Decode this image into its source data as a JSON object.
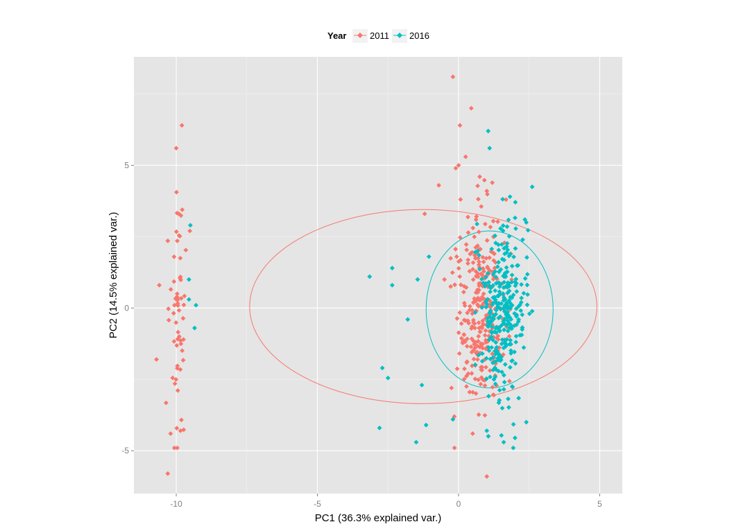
{
  "chart_data": {
    "type": "scatter",
    "title": "",
    "xlabel": "PC1 (36.3% explained var.)",
    "ylabel": "PC2 (14.5% explained var.)",
    "xlim": [
      -11.5,
      5.8
    ],
    "ylim": [
      -6.5,
      8.8
    ],
    "x_ticks": [
      -10,
      -5,
      0,
      5
    ],
    "y_ticks": [
      -5,
      0,
      5
    ],
    "x_tick_labels": [
      "-10",
      "-5",
      "0",
      "5"
    ],
    "y_tick_labels": [
      "-5",
      "0",
      "5"
    ],
    "grid": true,
    "background": "#e5e5e5",
    "legend": {
      "title": "Year",
      "position": "top"
    },
    "series": [
      {
        "name": "2011",
        "color": "#f8766d",
        "ellipse": {
          "cx": -1.25,
          "cy": 0.05,
          "rx": 6.15,
          "ry": 3.4
        },
        "clusters": [
          {
            "x_mean": -9.95,
            "x_sd": 0.18,
            "y_mean": 0.0,
            "y_sd": 2.2,
            "n": 60
          },
          {
            "x_mean": 0.8,
            "x_sd": 0.45,
            "y_mean": 0.0,
            "y_sd": 1.7,
            "n": 290
          }
        ],
        "points": [
          {
            "x": -10.0,
            "y": 5.6
          },
          {
            "x": -9.8,
            "y": 6.4
          },
          {
            "x": -10.2,
            "y": -4.4
          },
          {
            "x": -10.3,
            "y": -5.8
          },
          {
            "x": -10.6,
            "y": 0.8
          },
          {
            "x": -10.7,
            "y": -1.8
          },
          {
            "x": -9.85,
            "y": -4.3
          },
          {
            "x": -0.2,
            "y": 8.1
          },
          {
            "x": 0.45,
            "y": 7.0
          },
          {
            "x": 0.05,
            "y": 6.4
          },
          {
            "x": 1.0,
            "y": -5.9
          },
          {
            "x": -0.7,
            "y": 4.3
          },
          {
            "x": -1.2,
            "y": 3.3
          },
          {
            "x": 0.25,
            "y": 5.3
          },
          {
            "x": 0.0,
            "y": 5.0
          },
          {
            "x": 0.75,
            "y": 4.6
          },
          {
            "x": 1.0,
            "y": 4.1
          },
          {
            "x": -0.5,
            "y": 1.0
          },
          {
            "x": -0.25,
            "y": -2.8
          },
          {
            "x": -0.15,
            "y": -3.8
          },
          {
            "x": 0.5,
            "y": -4.4
          }
        ]
      },
      {
        "name": "2016",
        "color": "#00bfc4",
        "ellipse": {
          "cx": 1.1,
          "cy": -0.05,
          "rx": 2.25,
          "ry": 2.75
        },
        "clusters": [
          {
            "x_mean": 1.6,
            "x_sd": 0.42,
            "y_mean": 0.0,
            "y_sd": 1.55,
            "n": 300
          }
        ],
        "points": [
          {
            "x": -9.5,
            "y": 2.9
          },
          {
            "x": -9.55,
            "y": 1.0
          },
          {
            "x": -9.55,
            "y": 0.3
          },
          {
            "x": -9.3,
            "y": 0.1
          },
          {
            "x": -9.35,
            "y": -0.7
          },
          {
            "x": 1.05,
            "y": 6.2
          },
          {
            "x": 1.1,
            "y": 5.6
          },
          {
            "x": 2.35,
            "y": 3.1
          },
          {
            "x": 2.4,
            "y": 3.0
          },
          {
            "x": -3.15,
            "y": 1.1
          },
          {
            "x": -2.35,
            "y": 1.4
          },
          {
            "x": -2.35,
            "y": 0.8
          },
          {
            "x": -1.45,
            "y": 1.0
          },
          {
            "x": -1.05,
            "y": 1.8
          },
          {
            "x": -1.8,
            "y": -0.4
          },
          {
            "x": -2.7,
            "y": -2.1
          },
          {
            "x": -2.5,
            "y": -2.45
          },
          {
            "x": -1.3,
            "y": -2.7
          },
          {
            "x": -2.8,
            "y": -4.2
          },
          {
            "x": -1.15,
            "y": -4.1
          },
          {
            "x": -1.5,
            "y": -4.7
          },
          {
            "x": -0.2,
            "y": -3.9
          },
          {
            "x": 1.6,
            "y": -4.7
          },
          {
            "x": 2.0,
            "y": -4.55
          },
          {
            "x": 2.4,
            "y": -4.0
          },
          {
            "x": 1.0,
            "y": -4.3
          }
        ]
      }
    ]
  }
}
